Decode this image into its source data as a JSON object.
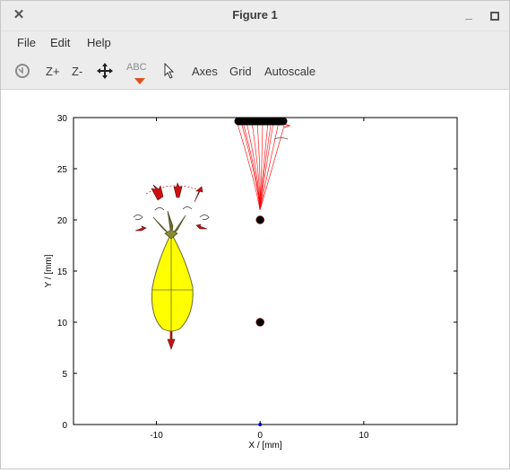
{
  "window": {
    "title": "Figure 1",
    "close_glyph": "✕",
    "minimize_glyph": "_"
  },
  "menu": {
    "items": [
      {
        "label": "File"
      },
      {
        "label": "Edit"
      },
      {
        "label": "Help"
      }
    ]
  },
  "toolbar": {
    "rotate_icon": "rotate-icon",
    "zoom_in_label": "Z+",
    "zoom_out_label": "Z-",
    "pan_icon": "pan-icon",
    "text_label": "ABC",
    "select_icon": "pointer-icon",
    "axes_label": "Axes",
    "grid_label": "Grid",
    "autoscale_label": "Autoscale"
  },
  "chart_data": {
    "type": "scatter",
    "xlabel": "X / [mm]",
    "ylabel": "Y / [mm]",
    "xlim": [
      -18,
      19
    ],
    "ylim": [
      0,
      30
    ],
    "xticks": [
      -10,
      0,
      10
    ],
    "yticks": [
      0,
      5,
      10,
      15,
      20,
      25,
      30
    ],
    "grid": false,
    "series": [
      {
        "marker": "black-dot",
        "points": [
          [
            0,
            20
          ],
          [
            0,
            10
          ]
        ]
      },
      {
        "marker": "blue-dot",
        "points": [
          [
            0,
            0
          ]
        ]
      }
    ],
    "colors": {
      "flow_lines": "#ff0000",
      "body_fill": "#ffff00",
      "arrows": "#cc1111",
      "axis": "#000000"
    }
  }
}
